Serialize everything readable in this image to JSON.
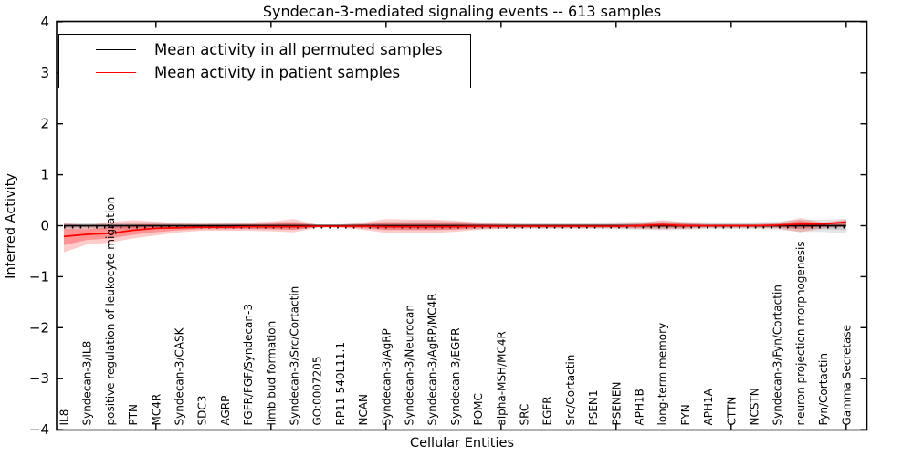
{
  "title": "Syndecan-3-mediated signaling events -- 613 samples",
  "axes": {
    "ylabel": "Inferred Activity",
    "xlabel": "Cellular Entities",
    "ytick_labels": [
      "4",
      "3",
      "2",
      "1",
      "0",
      "−1",
      "−2",
      "−3",
      "−4"
    ],
    "ytick_values": [
      4,
      3,
      2,
      1,
      0,
      -1,
      -2,
      -3,
      -4
    ]
  },
  "legend": {
    "items": [
      {
        "label": "Mean activity in all permuted samples",
        "color": "#000000"
      },
      {
        "label": "Mean activity in patient samples",
        "color": "#ff0000"
      }
    ]
  },
  "chart_data": {
    "type": "line",
    "title": "Syndecan-3-mediated signaling events -- 613 samples",
    "xlabel": "Cellular Entities",
    "ylabel": "Inferred Activity",
    "ylim": [
      -4,
      4
    ],
    "grid": false,
    "legend_position": "upper left",
    "categories": [
      "IL8",
      "Syndecan-3/IL8",
      "positive regulation of leukocyte migration",
      "PTN",
      "MC4R",
      "Syndecan-3/CASK",
      "SDC3",
      "AGRP",
      "FGFR/FGF/Syndecan-3",
      "limb bud formation",
      "Syndecan-3/Src/Cortactin",
      "GO:0007205",
      "RP11-540L11.1",
      "NCAN",
      "Syndecan-3/AgRP",
      "Syndecan-3/Neurocan",
      "Syndecan-3/AgRP/MC4R",
      "Syndecan-3/EGFR",
      "POMC",
      "alpha-MSH/MC4R",
      "SRC",
      "EGFR",
      "Src/Cortactin",
      "PSEN1",
      "PSENEN",
      "APH1B",
      "long-term memory",
      "FYN",
      "APH1A",
      "CTTN",
      "NCSTN",
      "Syndecan-3/Fyn/Cortactin",
      "neuron projection morphogenesis",
      "Fyn/Cortactin",
      "Gamma Secretase"
    ],
    "series": [
      {
        "name": "Mean activity in all permuted samples",
        "color": "#000000",
        "values": [
          0,
          0,
          0,
          0,
          0,
          0,
          0,
          0,
          0,
          0,
          0,
          0,
          0,
          0,
          0,
          0,
          0,
          0,
          0,
          0,
          0,
          0,
          0,
          0,
          0,
          0,
          0,
          0,
          0,
          0,
          0,
          0,
          0,
          0,
          0
        ],
        "band_upper": [
          0.06,
          0.06,
          0.06,
          0.07,
          0.07,
          0.06,
          0.05,
          0.06,
          0.06,
          0.07,
          0.08,
          0.03,
          0.03,
          0.05,
          0.08,
          0.09,
          0.09,
          0.08,
          0.07,
          0.06,
          0.06,
          0.06,
          0.06,
          0.06,
          0.07,
          0.08,
          0.09,
          0.08,
          0.07,
          0.07,
          0.07,
          0.08,
          0.12,
          0.12,
          0.14
        ],
        "band_lower": [
          -0.08,
          -0.07,
          -0.07,
          -0.08,
          -0.07,
          -0.06,
          -0.05,
          -0.06,
          -0.06,
          -0.07,
          -0.08,
          -0.03,
          -0.03,
          -0.05,
          -0.08,
          -0.09,
          -0.09,
          -0.08,
          -0.07,
          -0.06,
          -0.06,
          -0.06,
          -0.06,
          -0.06,
          -0.07,
          -0.08,
          -0.09,
          -0.08,
          -0.07,
          -0.07,
          -0.07,
          -0.08,
          -0.12,
          -0.12,
          -0.16
        ]
      },
      {
        "name": "Mean activity in patient samples",
        "color": "#ff0000",
        "values": [
          -0.21,
          -0.17,
          -0.15,
          -0.09,
          -0.05,
          -0.04,
          -0.03,
          -0.03,
          -0.02,
          -0.02,
          -0.02,
          -0.01,
          -0.01,
          -0.01,
          -0.02,
          -0.02,
          -0.02,
          -0.02,
          -0.01,
          -0.01,
          -0.01,
          -0.01,
          -0.01,
          -0.01,
          -0.01,
          0,
          0.02,
          0,
          0,
          0,
          0,
          0.01,
          0.03,
          0.03,
          0.07
        ],
        "band_upper": [
          0.05,
          0.01,
          0.07,
          0.11,
          0.08,
          0.05,
          0.04,
          0.05,
          0.06,
          0.08,
          0.13,
          0.02,
          0.02,
          0.06,
          0.13,
          0.12,
          0.12,
          0.1,
          0.06,
          0.04,
          0.03,
          0.03,
          0.03,
          0.03,
          0.03,
          0.05,
          0.11,
          0.06,
          0.03,
          0.03,
          0.03,
          0.05,
          0.15,
          0.06,
          0.12
        ],
        "band_lower": [
          -0.52,
          -0.37,
          -0.33,
          -0.25,
          -0.19,
          -0.13,
          -0.1,
          -0.1,
          -0.1,
          -0.11,
          -0.13,
          -0.04,
          -0.04,
          -0.08,
          -0.14,
          -0.14,
          -0.14,
          -0.12,
          -0.08,
          -0.06,
          -0.05,
          -0.05,
          -0.05,
          -0.05,
          -0.05,
          -0.06,
          -0.07,
          -0.06,
          -0.04,
          -0.04,
          -0.04,
          -0.05,
          -0.13,
          -0.05,
          -0.02
        ]
      }
    ],
    "xtick_major_indices": [
      4,
      9,
      14,
      19,
      24,
      29,
      34
    ]
  }
}
